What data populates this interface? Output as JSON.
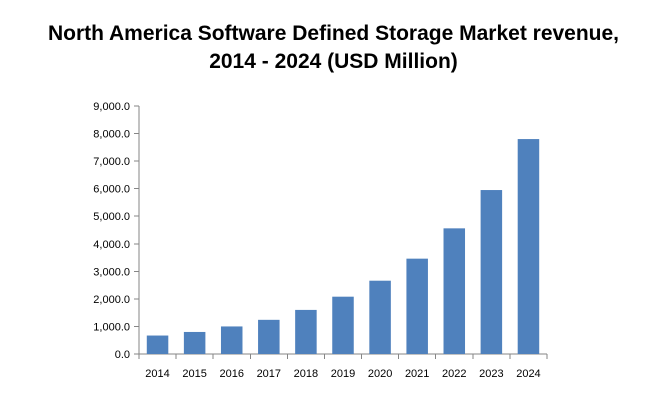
{
  "chart_data": {
    "type": "bar",
    "title_line1": "North America Software Defined Storage Market revenue,",
    "title_line2": "2014 - 2024 (USD Million)",
    "xlabel": "",
    "ylabel": "",
    "categories": [
      "2014",
      "2015",
      "2016",
      "2017",
      "2018",
      "2019",
      "2020",
      "2021",
      "2022",
      "2023",
      "2024"
    ],
    "values": [
      670,
      800,
      1000,
      1240,
      1600,
      2080,
      2660,
      3460,
      4560,
      5950,
      7800
    ],
    "ylim": [
      0,
      9000
    ],
    "yticks": [
      "0.0",
      "1,000.0",
      "2,000.0",
      "3,000.0",
      "4,000.0",
      "5,000.0",
      "6,000.0",
      "7,000.0",
      "8,000.0",
      "9,000.0"
    ],
    "grid": false,
    "legend": "none",
    "bar_color": "#4f81bd"
  }
}
